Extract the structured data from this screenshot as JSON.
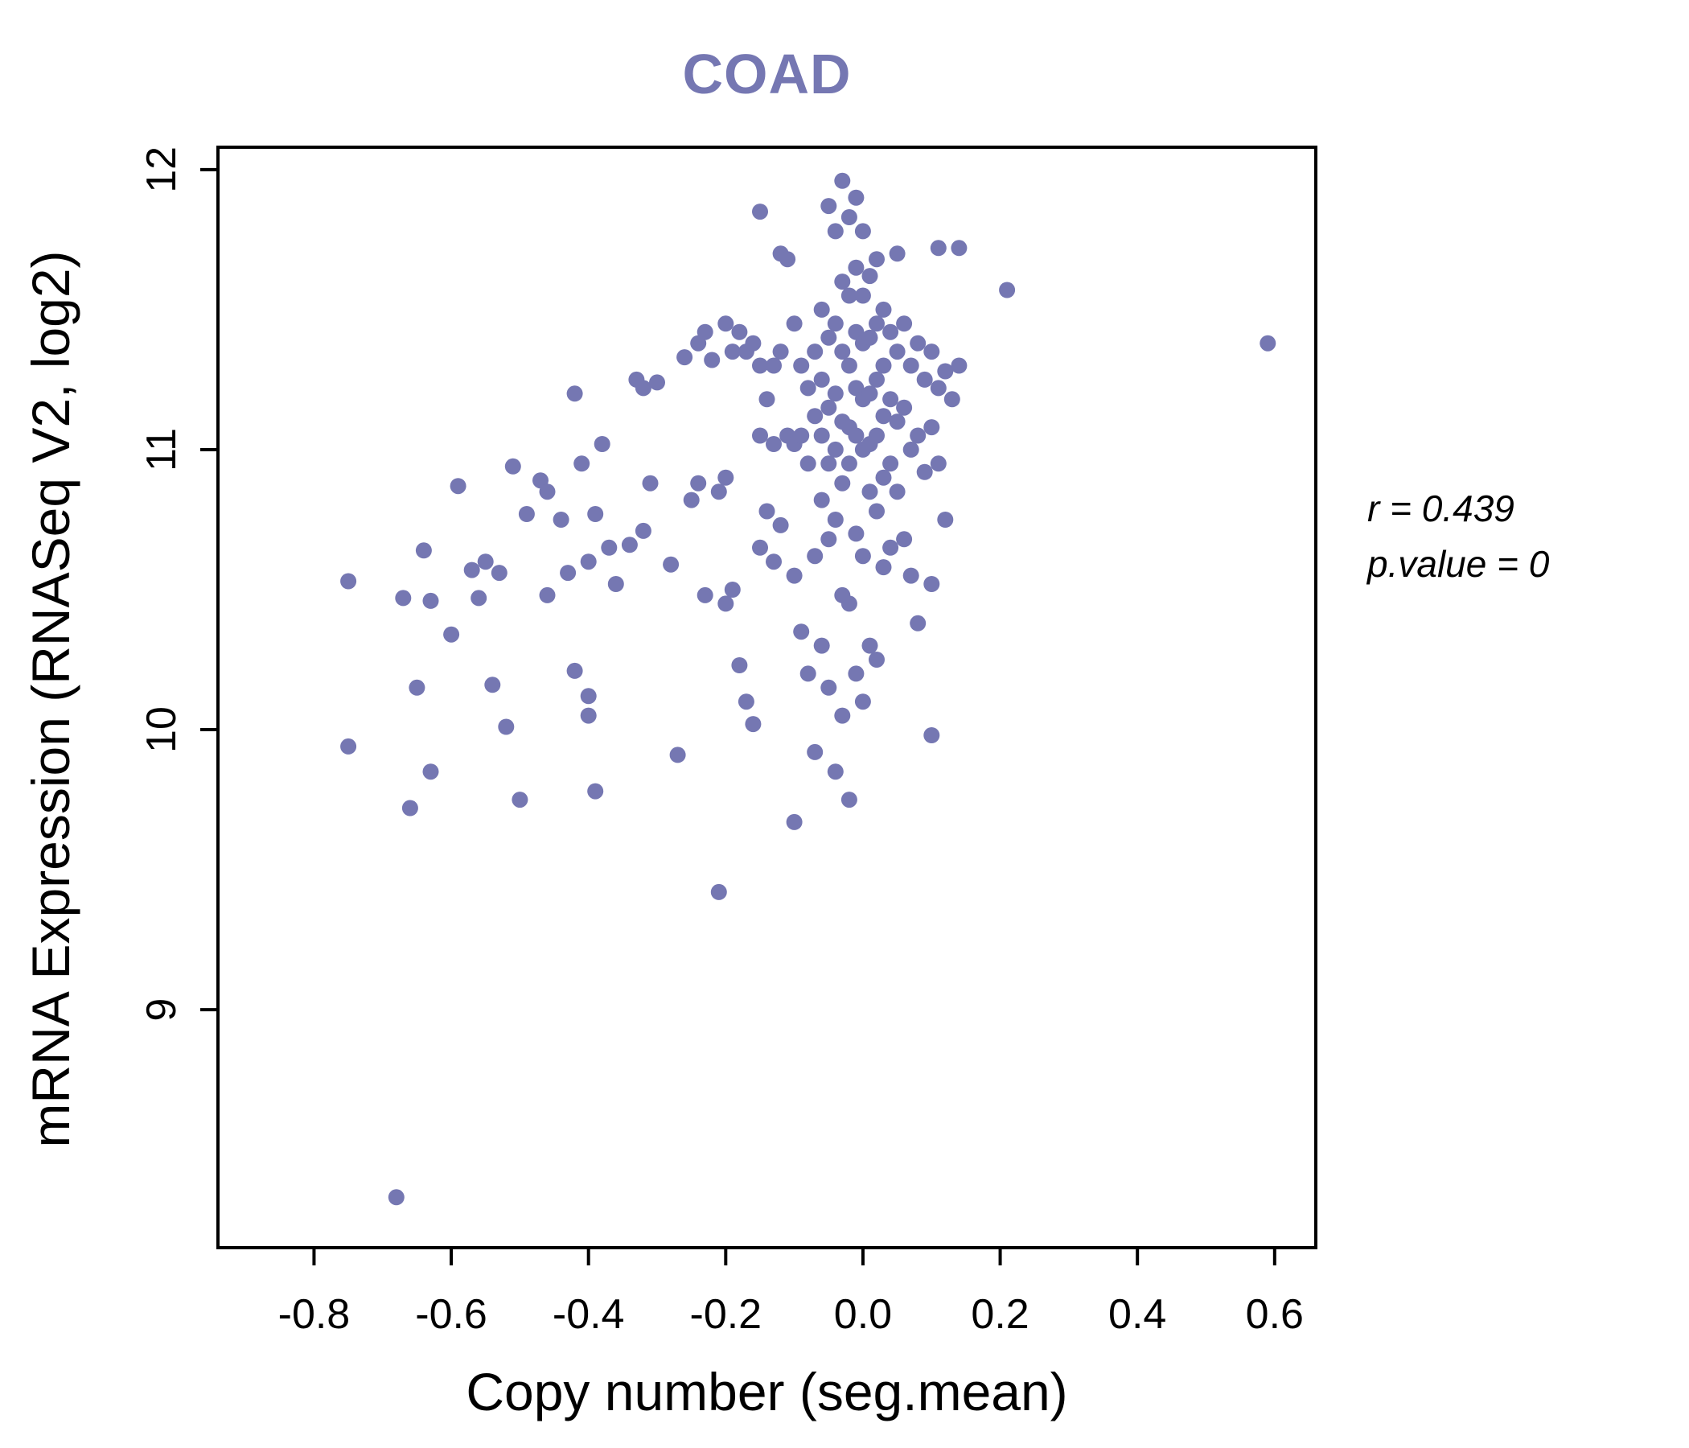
{
  "title": "COAD",
  "annotation": {
    "line1": "r = 0.439",
    "line2": "p.value = 0"
  },
  "chart_data": {
    "type": "scatter",
    "title": "COAD",
    "xlabel": "Copy number (seg.mean)",
    "ylabel": "mRNA Expression (RNASeq V2, log2)",
    "xlim": [
      -0.94,
      0.66
    ],
    "ylim": [
      8.15,
      12.08
    ],
    "xticks": [
      -0.8,
      -0.6,
      -0.4,
      -0.2,
      0.0,
      0.2,
      0.4,
      0.6
    ],
    "xtick_labels": [
      "-0.8",
      "-0.6",
      "-0.4",
      "-0.2",
      "0.0",
      "0.2",
      "0.4",
      "0.6"
    ],
    "yticks": [
      9,
      10,
      11,
      12
    ],
    "ytick_labels": [
      "9",
      "10",
      "11",
      "12"
    ],
    "grid": false,
    "legend": "none",
    "title_color": "#7577b2",
    "point_color": "#7577b2",
    "annotation_lines": [
      "r = 0.439",
      "p.value = 0"
    ],
    "points": [
      [
        -0.75,
        10.53
      ],
      [
        -0.75,
        9.94
      ],
      [
        -0.68,
        8.33
      ],
      [
        -0.67,
        10.47
      ],
      [
        -0.66,
        9.72
      ],
      [
        -0.65,
        10.15
      ],
      [
        -0.64,
        10.64
      ],
      [
        -0.63,
        10.46
      ],
      [
        -0.63,
        9.85
      ],
      [
        -0.6,
        10.34
      ],
      [
        -0.59,
        10.87
      ],
      [
        -0.57,
        10.57
      ],
      [
        -0.56,
        10.47
      ],
      [
        -0.55,
        10.6
      ],
      [
        -0.54,
        10.16
      ],
      [
        -0.53,
        10.56
      ],
      [
        -0.52,
        10.01
      ],
      [
        -0.51,
        10.94
      ],
      [
        -0.5,
        9.75
      ],
      [
        -0.49,
        10.77
      ],
      [
        -0.47,
        10.89
      ],
      [
        -0.46,
        10.85
      ],
      [
        -0.46,
        10.48
      ],
      [
        -0.44,
        10.75
      ],
      [
        -0.43,
        10.56
      ],
      [
        -0.42,
        11.2
      ],
      [
        -0.42,
        10.21
      ],
      [
        -0.41,
        10.95
      ],
      [
        -0.4,
        10.6
      ],
      [
        -0.4,
        10.12
      ],
      [
        -0.4,
        10.05
      ],
      [
        -0.39,
        10.77
      ],
      [
        -0.39,
        9.78
      ],
      [
        -0.38,
        11.02
      ],
      [
        -0.37,
        10.65
      ],
      [
        -0.36,
        10.52
      ],
      [
        -0.34,
        10.66
      ],
      [
        -0.33,
        11.25
      ],
      [
        -0.32,
        11.22
      ],
      [
        -0.32,
        10.71
      ],
      [
        -0.31,
        10.88
      ],
      [
        -0.3,
        11.24
      ],
      [
        -0.28,
        10.59
      ],
      [
        -0.27,
        9.91
      ],
      [
        -0.26,
        11.33
      ],
      [
        -0.25,
        10.82
      ],
      [
        -0.24,
        11.38
      ],
      [
        -0.24,
        10.88
      ],
      [
        -0.23,
        11.42
      ],
      [
        -0.23,
        10.48
      ],
      [
        -0.22,
        11.32
      ],
      [
        -0.21,
        10.85
      ],
      [
        -0.21,
        9.42
      ],
      [
        -0.2,
        11.45
      ],
      [
        -0.2,
        10.9
      ],
      [
        -0.2,
        10.45
      ],
      [
        -0.19,
        11.35
      ],
      [
        -0.19,
        10.5
      ],
      [
        -0.18,
        11.42
      ],
      [
        -0.18,
        10.23
      ],
      [
        -0.17,
        11.35
      ],
      [
        -0.17,
        10.1
      ],
      [
        -0.16,
        11.38
      ],
      [
        -0.16,
        10.02
      ],
      [
        -0.15,
        11.85
      ],
      [
        -0.15,
        11.3
      ],
      [
        -0.15,
        11.05
      ],
      [
        -0.15,
        10.65
      ],
      [
        -0.14,
        11.18
      ],
      [
        -0.14,
        10.78
      ],
      [
        -0.13,
        11.3
      ],
      [
        -0.13,
        11.02
      ],
      [
        -0.13,
        10.6
      ],
      [
        -0.12,
        11.7
      ],
      [
        -0.12,
        11.35
      ],
      [
        -0.12,
        10.73
      ],
      [
        -0.11,
        11.68
      ],
      [
        -0.11,
        11.05
      ],
      [
        -0.1,
        11.45
      ],
      [
        -0.1,
        11.02
      ],
      [
        -0.1,
        10.55
      ],
      [
        -0.1,
        9.67
      ],
      [
        -0.09,
        11.3
      ],
      [
        -0.09,
        11.05
      ],
      [
        -0.09,
        10.35
      ],
      [
        -0.08,
        11.22
      ],
      [
        -0.08,
        10.95
      ],
      [
        -0.08,
        10.2
      ],
      [
        -0.07,
        11.35
      ],
      [
        -0.07,
        11.12
      ],
      [
        -0.07,
        10.62
      ],
      [
        -0.07,
        9.92
      ],
      [
        -0.06,
        11.5
      ],
      [
        -0.06,
        11.25
      ],
      [
        -0.06,
        11.05
      ],
      [
        -0.06,
        10.82
      ],
      [
        -0.06,
        10.3
      ],
      [
        -0.05,
        11.87
      ],
      [
        -0.05,
        11.4
      ],
      [
        -0.05,
        11.15
      ],
      [
        -0.05,
        10.95
      ],
      [
        -0.05,
        10.68
      ],
      [
        -0.05,
        10.15
      ],
      [
        -0.04,
        11.78
      ],
      [
        -0.04,
        11.45
      ],
      [
        -0.04,
        11.2
      ],
      [
        -0.04,
        11.0
      ],
      [
        -0.04,
        10.75
      ],
      [
        -0.04,
        9.85
      ],
      [
        -0.03,
        11.96
      ],
      [
        -0.03,
        11.6
      ],
      [
        -0.03,
        11.35
      ],
      [
        -0.03,
        11.1
      ],
      [
        -0.03,
        10.88
      ],
      [
        -0.03,
        10.48
      ],
      [
        -0.03,
        10.05
      ],
      [
        -0.02,
        11.83
      ],
      [
        -0.02,
        11.55
      ],
      [
        -0.02,
        11.3
      ],
      [
        -0.02,
        11.08
      ],
      [
        -0.02,
        10.95
      ],
      [
        -0.02,
        10.45
      ],
      [
        -0.02,
        9.75
      ],
      [
        -0.01,
        11.9
      ],
      [
        -0.01,
        11.65
      ],
      [
        -0.01,
        11.42
      ],
      [
        -0.01,
        11.22
      ],
      [
        -0.01,
        11.05
      ],
      [
        -0.01,
        10.7
      ],
      [
        -0.01,
        10.2
      ],
      [
        0.0,
        11.78
      ],
      [
        0.0,
        11.55
      ],
      [
        0.0,
        11.38
      ],
      [
        0.0,
        11.18
      ],
      [
        0.0,
        11.0
      ],
      [
        0.0,
        10.62
      ],
      [
        0.0,
        10.1
      ],
      [
        0.01,
        11.62
      ],
      [
        0.01,
        11.4
      ],
      [
        0.01,
        11.2
      ],
      [
        0.01,
        11.02
      ],
      [
        0.01,
        10.85
      ],
      [
        0.01,
        10.3
      ],
      [
        0.02,
        11.68
      ],
      [
        0.02,
        11.45
      ],
      [
        0.02,
        11.25
      ],
      [
        0.02,
        11.05
      ],
      [
        0.02,
        10.78
      ],
      [
        0.02,
        10.25
      ],
      [
        0.03,
        11.5
      ],
      [
        0.03,
        11.3
      ],
      [
        0.03,
        11.12
      ],
      [
        0.03,
        10.9
      ],
      [
        0.03,
        10.58
      ],
      [
        0.04,
        11.42
      ],
      [
        0.04,
        11.18
      ],
      [
        0.04,
        10.95
      ],
      [
        0.04,
        10.65
      ],
      [
        0.05,
        11.7
      ],
      [
        0.05,
        11.35
      ],
      [
        0.05,
        11.1
      ],
      [
        0.05,
        10.85
      ],
      [
        0.06,
        11.45
      ],
      [
        0.06,
        11.15
      ],
      [
        0.06,
        10.68
      ],
      [
        0.07,
        11.3
      ],
      [
        0.07,
        11.0
      ],
      [
        0.07,
        10.55
      ],
      [
        0.08,
        11.38
      ],
      [
        0.08,
        11.05
      ],
      [
        0.08,
        10.38
      ],
      [
        0.09,
        11.25
      ],
      [
        0.09,
        10.92
      ],
      [
        0.1,
        11.35
      ],
      [
        0.1,
        11.08
      ],
      [
        0.1,
        10.52
      ],
      [
        0.1,
        9.98
      ],
      [
        0.11,
        11.72
      ],
      [
        0.11,
        11.22
      ],
      [
        0.11,
        10.95
      ],
      [
        0.12,
        11.28
      ],
      [
        0.12,
        10.75
      ],
      [
        0.13,
        11.18
      ],
      [
        0.14,
        11.72
      ],
      [
        0.14,
        11.3
      ],
      [
        0.21,
        11.57
      ],
      [
        0.59,
        11.38
      ]
    ]
  }
}
